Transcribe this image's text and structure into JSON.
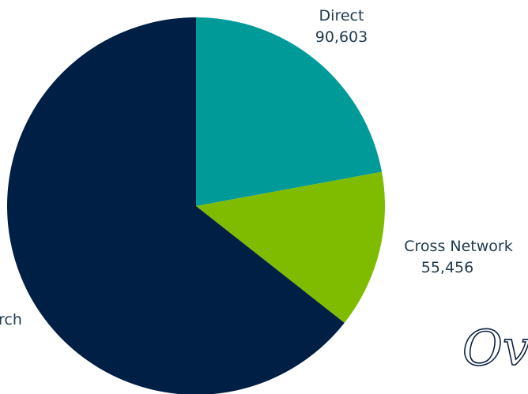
{
  "chart_data": {
    "type": "pie",
    "title": "",
    "start_angle_deg": 0,
    "direction": "clockwise",
    "slices": [
      {
        "label": "Direct",
        "value": 90603,
        "value_label": "90,603",
        "color": "#009b99"
      },
      {
        "label": "Cross Network",
        "value": 55456,
        "value_label": "55,456",
        "color": "#7fbc00"
      },
      {
        "label": "Search",
        "visible_label": "rch",
        "value": 264000,
        "color": "#001f45"
      }
    ]
  },
  "decor": {
    "script_text": "Ov"
  }
}
